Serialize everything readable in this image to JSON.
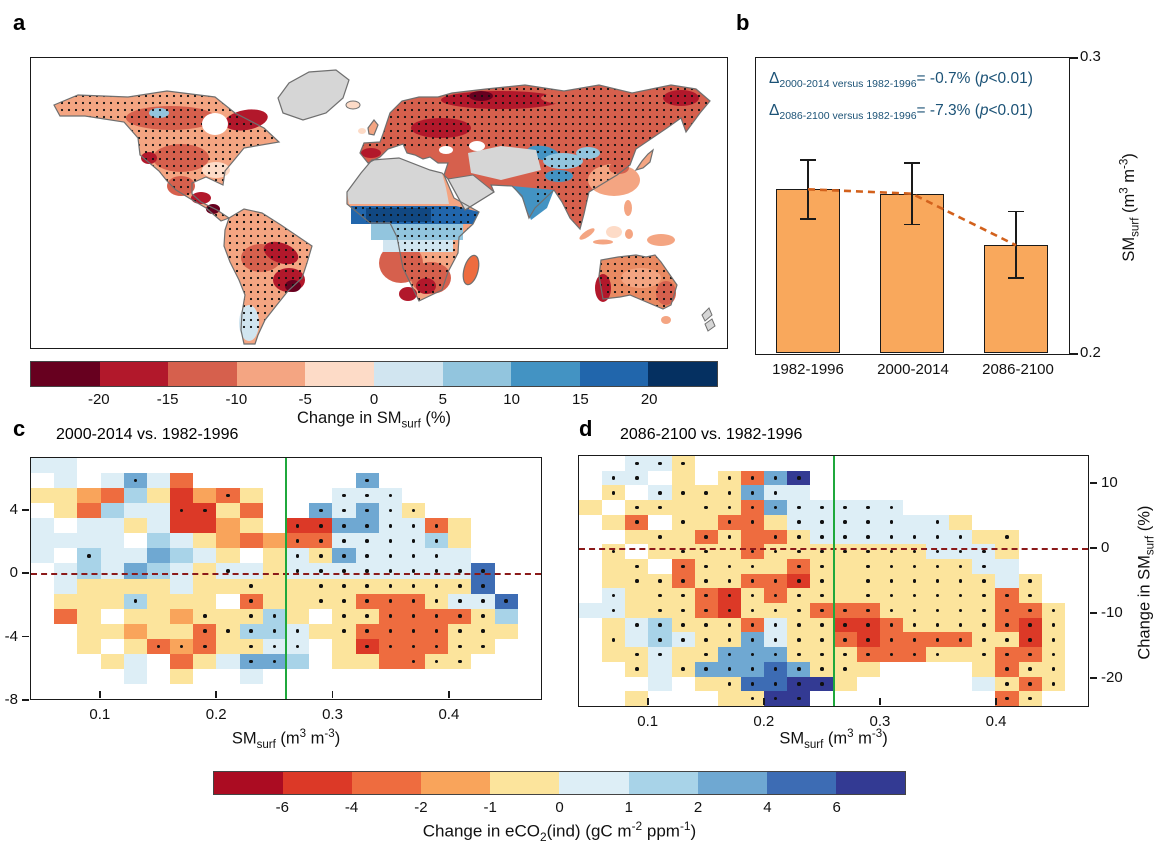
{
  "ui": {
    "panel_labels": {
      "a": "a",
      "b": "b",
      "c": "c",
      "d": "d"
    },
    "sm_surf_axis": {
      "p1": "SM",
      "sub": "surf",
      "p2": " (m",
      "sup1": "3",
      "p3": " m",
      "sup2": "-3",
      "p4": ")"
    },
    "change_sm_axis": {
      "p1": "Change in SM",
      "sub": "surf",
      "p2": " (%)"
    },
    "eco2_axis": {
      "p1": "Change in eCO",
      "sub": "2",
      "p2": "(ind) (gC m",
      "sup1": "-2",
      "p3": " ppm",
      "sup2": "-1",
      "p4": ")"
    }
  },
  "heatmap_codes": {
    "a": "#ab0c22",
    "b": "#dc3927",
    "c": "#ee6c3f",
    "d": "#f9a45b",
    "e": "#fce49c",
    "f": "#ddeef6",
    "g": "#a8d3e8",
    "h": "#6fa8d2",
    "i": "#3d6cb4",
    "j": "#333a93"
  },
  "accent_colors": {
    "bar_fill": "#f9a85c",
    "bar_edge": "#1a1a1a",
    "trend_dash": "#d2611c",
    "zero_dash": "#8b1a1a",
    "green_line": "#1fa83c",
    "annotation_blue": "#1b5276",
    "nodata_gray": "#d6d6d6",
    "coastline": "#6f6f6f"
  },
  "chart_data": [
    {
      "type": "map",
      "panel": "a",
      "title": "Change in SM_surf (%)",
      "stipple_dots": true,
      "colorbar": {
        "ticks": [
          -20,
          -15,
          -10,
          -5,
          0,
          5,
          10,
          15,
          20
        ],
        "tick_labels": [
          "-20",
          "-15",
          "-10",
          "-5",
          "0",
          "5",
          "10",
          "15",
          "20"
        ],
        "colors": [
          "#67001f",
          "#b2182b",
          "#d6604d",
          "#f4a582",
          "#fddbc7",
          "#d1e5f0",
          "#92c5de",
          "#4393c3",
          "#2166ac",
          "#053061"
        ]
      }
    },
    {
      "type": "bar",
      "panel": "b",
      "categories": [
        "1982-1996",
        "2000-2014",
        "2086-2100"
      ],
      "values": [
        0.2555,
        0.254,
        0.2365
      ],
      "error_up": [
        0.01,
        0.0105,
        0.0115
      ],
      "error_down": [
        0.01,
        0.0105,
        0.011
      ],
      "ylim": [
        0.2,
        0.3
      ],
      "ytick_labels": [
        "0.3",
        "0.2"
      ],
      "ylabel": "SM_surf (m3 m-3)",
      "annotations": [
        {
          "d": "Δ",
          "sub": "2000-2014 versus 1982-1996",
          "mid": "= -0.7% (",
          "p": "p",
          "end": "<0.01)"
        },
        {
          "d": "Δ",
          "sub": "2086-2100 versus 1982-1996",
          "mid": "= -7.3% (",
          "p": "p",
          "end": "<0.01)"
        }
      ]
    },
    {
      "type": "heatmap",
      "panel": "c",
      "title": "2000-2014 vs. 1982-1996",
      "xlabel": "SM_surf (m3 m-3)",
      "value_label": "Change in eCO2(ind) (gC m-2 ppm-1)",
      "xlim": [
        0.04,
        0.48
      ],
      "xticks": [
        0.1,
        0.2,
        0.3,
        0.4
      ],
      "ylim": [
        -8,
        7.33
      ],
      "yticks": [
        4,
        0,
        -4,
        -8
      ],
      "vline_x": 0.26,
      "hline_y": 0,
      "dot_meaning": "stippled cells",
      "grid": [
        "ff....................",
        ".f.fHfc.......H.......",
        "eedcgebdCe...FFF......",
        ".ecgffBBec..HFHFE.....",
        "f.ffefbbde.BBHHFFCe...",
        "ffff.gfedcdCCFFFFGe...",
        "f.Gffhgfe.eFEHFFFFf...",
        ".fgfhgfeFfeFFFFFFFFI..",
        ".feeeefeeEeeEEEEEEEI..",
        ".eeeGeee.CeeEECCCEFFI.",
        ".ce.eedEeEGe.EECCCCEg.",
        "..eedeeCEGGFeECCCCEEe.",
        "..e.eCDCeEFF.eBCCCEE..",
        "...ef.cefHHg.eecCEE...",
        "....f.e..f............",
        "......................"
      ]
    },
    {
      "type": "heatmap",
      "panel": "d",
      "title": "2086-2100 vs. 1982-1996",
      "xlabel": "SM_surf (m3 m-3)",
      "ylabel_right": "Change in SM_surf (%)",
      "value_label": "Change in eCO2(ind) (gC m-2 ppm-1)",
      "xlim": [
        0.04,
        0.48
      ],
      "xticks": [
        0.1,
        0.2,
        0.3,
        0.4
      ],
      "ylim": [
        -24.5,
        14.3
      ],
      "yticks": [
        10,
        0,
        -10,
        -20
      ],
      "vline_x": 0.26,
      "hline_y": 0,
      "grid": [
        "..FFE.................",
        ".FF.e.ECHJ............",
        ".E.FEEEHFf............",
        "e.EEeEECHFFFFF........",
        ".eC.EeCCeFFFFFfFe.....",
        "..eEeCEcCEFFFFFFFeE...",
        ".E.eEEeCEEEEEEEFFFe...",
        ".eE.CEEEeCEeEEEEEFf...",
        ".eEECEECCBEeEEEEEEfE..",
        ".FeEECBECEEeEEEEEECE..",
        "fFeEECBEEECCCEEEEECCE.",
        ".eFGEEECFEEBBCEEEECBE.",
        ".EfGFEEHFEECBCCCCEEBE.",
        ".eEFeEHHHEEECCCEeECCE.",
        "..EfEHHHIHEEe....eCEE.",
        "...f.eEIIJJe.....fECE.",
        "..e...eEJJ........CE.."
      ]
    },
    {
      "type": "colorbar",
      "panel": "c-d shared",
      "caption": "Change in eCO2(ind) (gC m-2 ppm-1)",
      "ticks": [
        -6,
        -4,
        -2,
        -1,
        0,
        1,
        2,
        4,
        6
      ],
      "tick_labels": [
        "-6",
        "-4",
        "-2",
        "-1",
        "0",
        "1",
        "2",
        "4",
        "6"
      ],
      "colors": [
        "#ab0c22",
        "#dc3927",
        "#ee6c3f",
        "#f9a45b",
        "#fce49c",
        "#ddeef6",
        "#a8d3e8",
        "#6fa8d2",
        "#3d6cb4",
        "#333a93"
      ]
    }
  ]
}
